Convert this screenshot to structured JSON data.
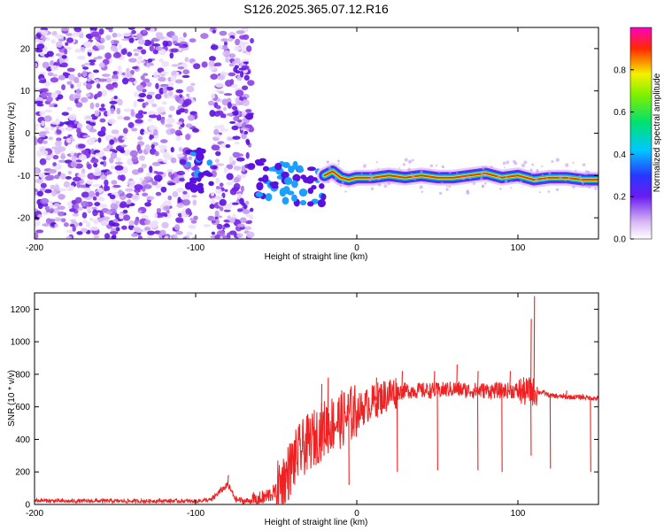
{
  "title": "S126.2025.365.07.12.R16",
  "colors": {
    "snr_line": "#ee2222",
    "scatter_dot": "#8a2be2",
    "frame": "#000000"
  },
  "chart_data": [
    {
      "type": "heatmap",
      "title": "S126.2025.365.07.12.R16",
      "xlabel": "Height of straight line (km)",
      "ylabel": "Frequency (Hz)",
      "xlim": [
        -200,
        150
      ],
      "ylim": [
        -25,
        25
      ],
      "x_ticks": [
        -200,
        -100,
        0,
        100
      ],
      "x_tick_labels": [
        "-200",
        "-100",
        "0",
        "100"
      ],
      "y_ticks": [
        -20,
        -10,
        0,
        10,
        20
      ],
      "y_tick_labels": [
        "-20",
        "-10",
        "0",
        "10",
        "20"
      ],
      "colorbar": {
        "label": "Normalized spectral amplitude",
        "range": [
          0,
          1
        ],
        "ticks": [
          0.0,
          0.2,
          0.4,
          0.6,
          0.8
        ],
        "tick_labels": [
          "0.0",
          "0.2",
          "0.4",
          "0.6",
          "0.8"
        ],
        "colormap": "rainbow (white-purple-blue-cyan-green-yellow-red-magenta)"
      },
      "features": {
        "noise_region_x": [
          -200,
          -65
        ],
        "noise_gap_x": [
          -100,
          -90
        ],
        "carrier_track": {
          "x": [
            -20,
            -15,
            -10,
            -5,
            0,
            10,
            20,
            30,
            40,
            50,
            60,
            70,
            80,
            90,
            100,
            110,
            120,
            130,
            140,
            150
          ],
          "frequency": [
            -10,
            -9,
            -10.5,
            -11,
            -10.5,
            -10.5,
            -10,
            -10.5,
            -10,
            -10.5,
            -10.5,
            -10,
            -9.5,
            -10.5,
            -10,
            -11,
            -10.5,
            -10.5,
            -11,
            -11
          ]
        }
      },
      "grid": false
    },
    {
      "type": "line",
      "xlabel": "Height of straight line (km)",
      "ylabel": "SNR (10 * v/v)",
      "xlim": [
        -200,
        150
      ],
      "ylim": [
        0,
        1300
      ],
      "x_ticks": [
        -200,
        -100,
        0,
        100
      ],
      "x_tick_labels": [
        "-200",
        "-100",
        "0",
        "100"
      ],
      "y_ticks": [
        0,
        200,
        400,
        600,
        800,
        1000,
        1200
      ],
      "y_tick_labels": [
        "0",
        "200",
        "400",
        "600",
        "800",
        "1000",
        "1200"
      ],
      "series": [
        {
          "x": [
            -200,
            -180,
            -160,
            -140,
            -120,
            -100,
            -90,
            -85,
            -80,
            -75,
            -70,
            -60,
            -50,
            -45,
            -40,
            -35,
            -30,
            -25,
            -20,
            -15,
            -10,
            -5,
            0,
            5,
            10,
            20,
            30,
            40,
            50,
            60,
            70,
            80,
            90,
            100,
            105,
            108,
            110,
            115,
            120,
            130,
            140,
            150
          ],
          "y": [
            25,
            20,
            22,
            20,
            22,
            20,
            30,
            80,
            120,
            30,
            20,
            30,
            80,
            150,
            250,
            330,
            380,
            420,
            470,
            500,
            520,
            550,
            570,
            600,
            630,
            680,
            700,
            700,
            700,
            710,
            700,
            700,
            700,
            700,
            690,
            700,
            690,
            690,
            670,
            660,
            660,
            650
          ],
          "spikes_x": [
            -80,
            -22,
            -18,
            12,
            28,
            48,
            62,
            75,
            95,
            108,
            110,
            130,
            140
          ],
          "spikes_y": [
            180,
            740,
            780,
            780,
            820,
            820,
            860,
            820,
            820,
            1140,
            1280,
            700,
            680
          ],
          "dips_x": [
            -5,
            25,
            50,
            75,
            90,
            108,
            120,
            145
          ],
          "dips_y": [
            120,
            200,
            210,
            210,
            200,
            300,
            220,
            200
          ]
        }
      ],
      "grid": false
    }
  ]
}
